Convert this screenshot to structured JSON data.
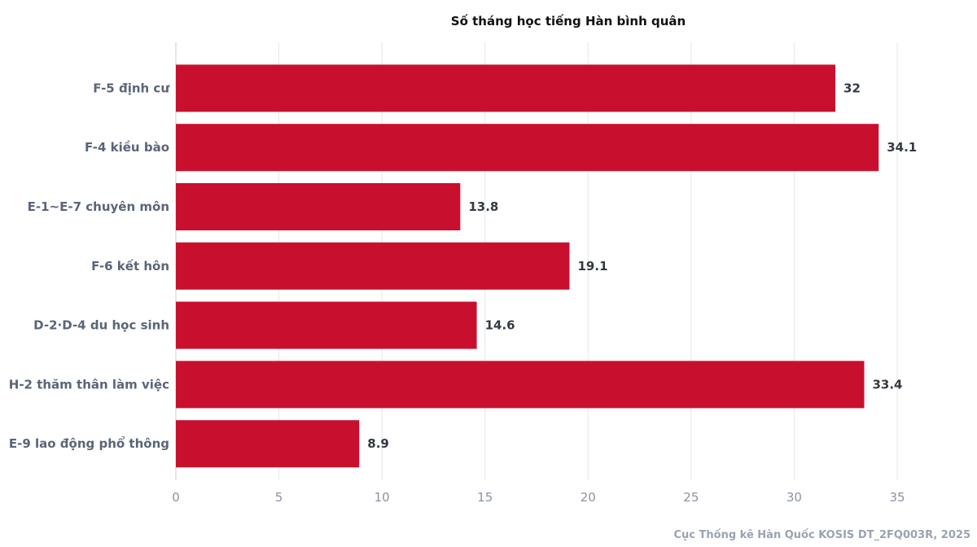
{
  "chart_data": {
    "type": "bar",
    "orientation": "horizontal",
    "title": "Số tháng học tiếng Hàn bình quân",
    "categories": [
      "F-5 định cư",
      "F-4 kiều bào",
      "E-1~E-7 chuyên môn",
      "F-6 kết hôn",
      "D-2·D-4 du học sinh",
      "H-2 thăm thân làm việc",
      "E-9 lao động phổ thông"
    ],
    "values": [
      32,
      34.1,
      13.8,
      19.1,
      14.6,
      33.4,
      8.9
    ],
    "value_labels": [
      "32",
      "34.1",
      "13.8",
      "19.1",
      "14.6",
      "33.4",
      "8.9"
    ],
    "xlim": [
      0,
      35
    ],
    "xticks": [
      0,
      5,
      10,
      15,
      20,
      25,
      30,
      35
    ],
    "xlabel": "",
    "ylabel": "",
    "grid": true,
    "bar_color": "#c8102e",
    "source": "Cục Thống kê Hàn Quốc KOSIS DT_2FQ003R, 2025"
  }
}
